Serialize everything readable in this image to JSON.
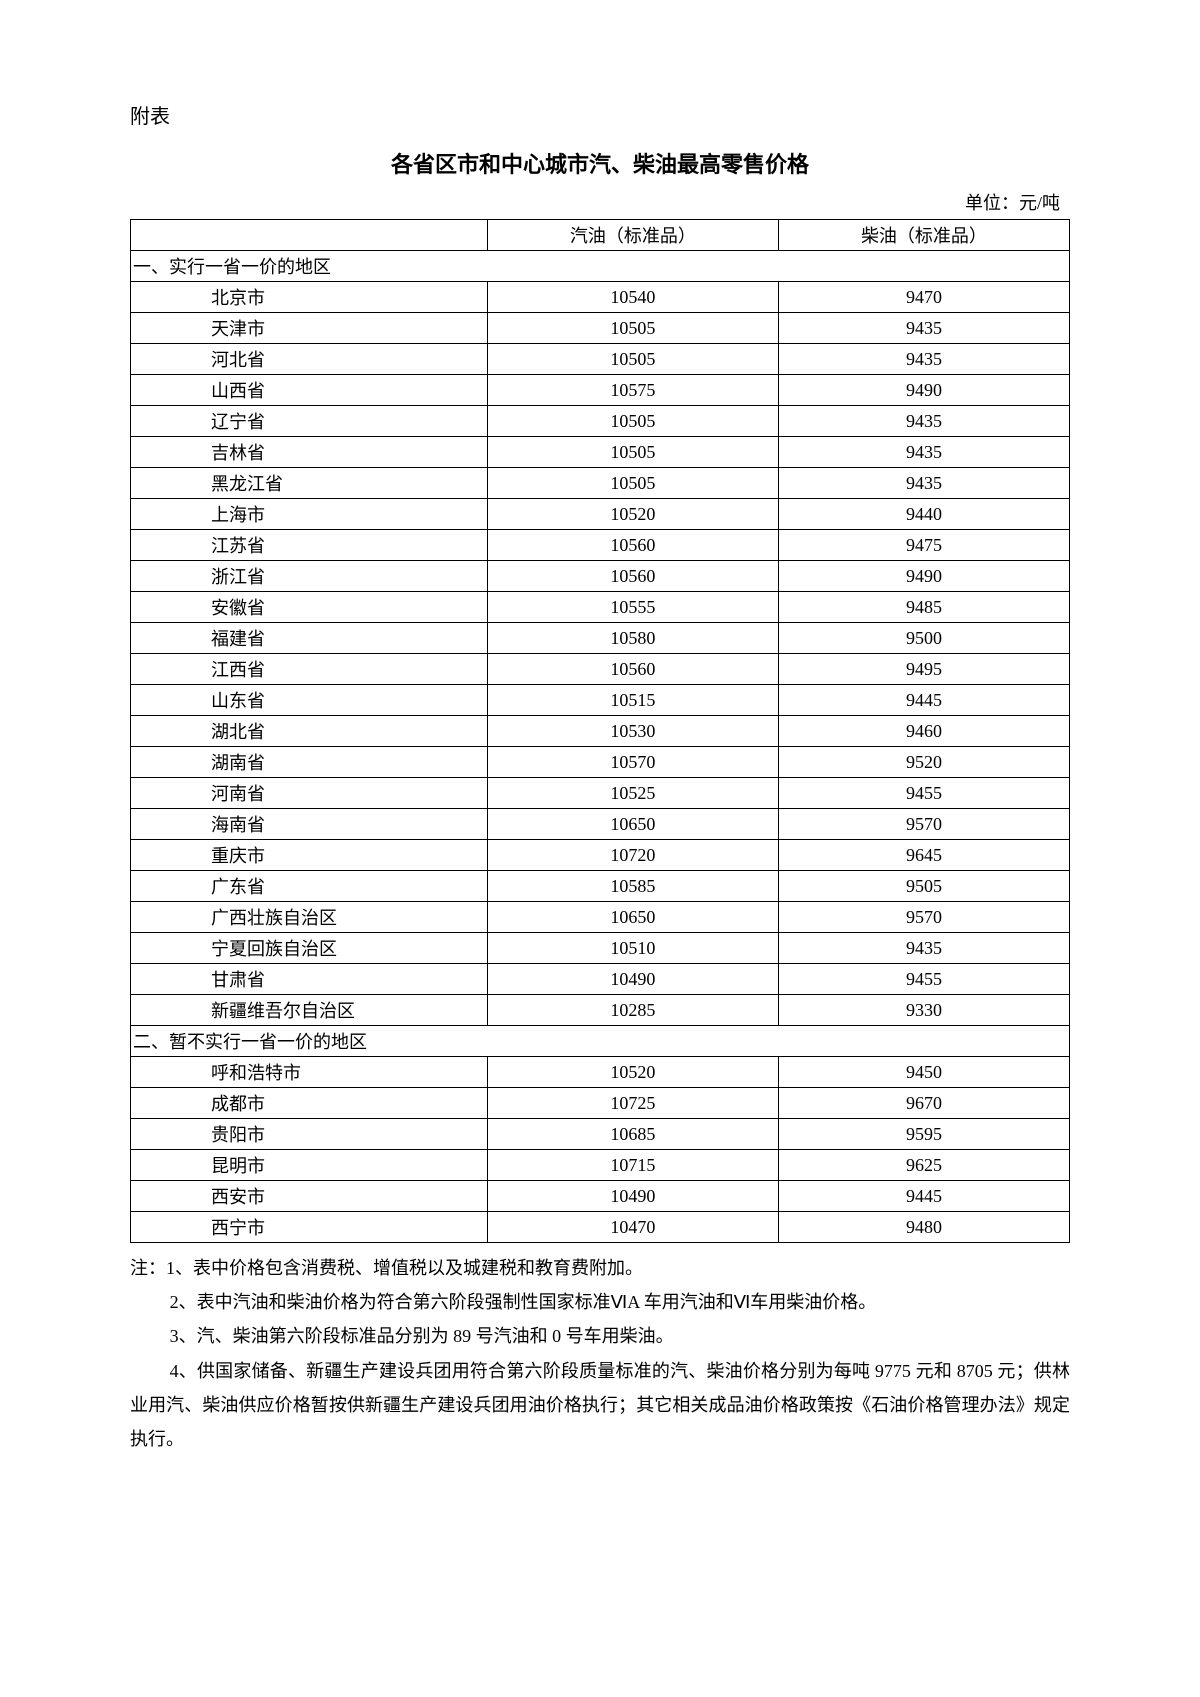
{
  "attachment_label": "附表",
  "title": "各省区市和中心城市汽、柴油最高零售价格",
  "unit": "单位：元/吨",
  "columns": {
    "gasoline": "汽油（标准品）",
    "diesel": "柴油（标准品）"
  },
  "section1": {
    "label": "一、实行一省一价的地区",
    "rows": [
      {
        "region": "北京市",
        "gasoline": "10540",
        "diesel": "9470"
      },
      {
        "region": "天津市",
        "gasoline": "10505",
        "diesel": "9435"
      },
      {
        "region": "河北省",
        "gasoline": "10505",
        "diesel": "9435"
      },
      {
        "region": "山西省",
        "gasoline": "10575",
        "diesel": "9490"
      },
      {
        "region": "辽宁省",
        "gasoline": "10505",
        "diesel": "9435"
      },
      {
        "region": "吉林省",
        "gasoline": "10505",
        "diesel": "9435"
      },
      {
        "region": "黑龙江省",
        "gasoline": "10505",
        "diesel": "9435"
      },
      {
        "region": "上海市",
        "gasoline": "10520",
        "diesel": "9440"
      },
      {
        "region": "江苏省",
        "gasoline": "10560",
        "diesel": "9475"
      },
      {
        "region": "浙江省",
        "gasoline": "10560",
        "diesel": "9490"
      },
      {
        "region": "安徽省",
        "gasoline": "10555",
        "diesel": "9485"
      },
      {
        "region": "福建省",
        "gasoline": "10580",
        "diesel": "9500"
      },
      {
        "region": "江西省",
        "gasoline": "10560",
        "diesel": "9495"
      },
      {
        "region": "山东省",
        "gasoline": "10515",
        "diesel": "9445"
      },
      {
        "region": "湖北省",
        "gasoline": "10530",
        "diesel": "9460"
      },
      {
        "region": "湖南省",
        "gasoline": "10570",
        "diesel": "9520"
      },
      {
        "region": "河南省",
        "gasoline": "10525",
        "diesel": "9455"
      },
      {
        "region": "海南省",
        "gasoline": "10650",
        "diesel": "9570"
      },
      {
        "region": "重庆市",
        "gasoline": "10720",
        "diesel": "9645"
      },
      {
        "region": "广东省",
        "gasoline": "10585",
        "diesel": "9505"
      },
      {
        "region": "广西壮族自治区",
        "gasoline": "10650",
        "diesel": "9570"
      },
      {
        "region": "宁夏回族自治区",
        "gasoline": "10510",
        "diesel": "9435"
      },
      {
        "region": "甘肃省",
        "gasoline": "10490",
        "diesel": "9455"
      },
      {
        "region": "新疆维吾尔自治区",
        "gasoline": "10285",
        "diesel": "9330"
      }
    ]
  },
  "section2": {
    "label": "二、暂不实行一省一价的地区",
    "rows": [
      {
        "region": "呼和浩特市",
        "gasoline": "10520",
        "diesel": "9450"
      },
      {
        "region": "成都市",
        "gasoline": "10725",
        "diesel": "9670"
      },
      {
        "region": "贵阳市",
        "gasoline": "10685",
        "diesel": "9595"
      },
      {
        "region": "昆明市",
        "gasoline": "10715",
        "diesel": "9625"
      },
      {
        "region": "西安市",
        "gasoline": "10490",
        "diesel": "9445"
      },
      {
        "region": "西宁市",
        "gasoline": "10470",
        "diesel": "9480"
      }
    ]
  },
  "notes": {
    "n1": "注：1、表中价格包含消费税、增值税以及城建税和教育费附加。",
    "n2": "2、表中汽油和柴油价格为符合第六阶段强制性国家标准ⅥA 车用汽油和Ⅵ车用柴油价格。",
    "n3": "3、汽、柴油第六阶段标准品分别为 89 号汽油和 0 号车用柴油。",
    "n4": "4、供国家储备、新疆生产建设兵团用符合第六阶段质量标准的汽、柴油价格分别为每吨 9775 元和 8705 元；供林业用汽、柴油供应价格暂按供新疆生产建设兵团用油价格执行；其它相关成品油价格政策按《石油价格管理办法》规定执行。"
  },
  "style": {
    "border_color": "#000000",
    "background_color": "#ffffff",
    "text_color": "#000000"
  }
}
